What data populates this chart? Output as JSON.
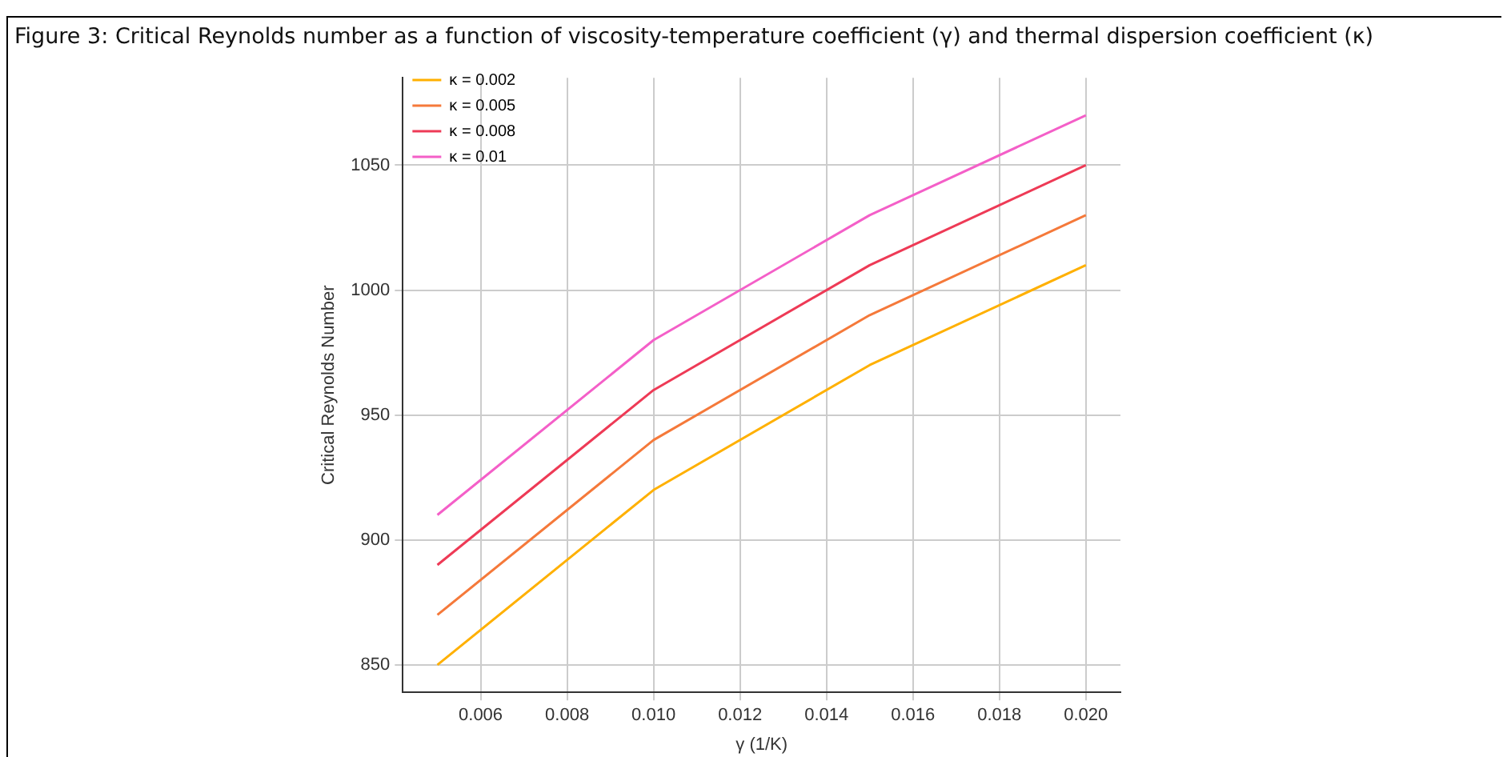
{
  "chart_data": {
    "type": "line",
    "title": "Figure 3: Critical Reynolds number as a function of viscosity-temperature coefficient (γ) and thermal dispersion coefficient (κ)",
    "xlabel": "γ (1/K)",
    "ylabel": "Critical Reynolds Number",
    "x": [
      0.005,
      0.01,
      0.015,
      0.02
    ],
    "series": [
      {
        "name": "κ = 0.002",
        "color": "#ffb000",
        "values": [
          850,
          920,
          970,
          1010
        ]
      },
      {
        "name": "κ = 0.005",
        "color": "#f5793a",
        "values": [
          870,
          940,
          990,
          1030
        ]
      },
      {
        "name": "κ = 0.008",
        "color": "#ee3a56",
        "values": [
          890,
          960,
          1010,
          1050
        ]
      },
      {
        "name": "κ = 0.01",
        "color": "#f45fc8",
        "values": [
          910,
          980,
          1030,
          1070
        ]
      }
    ],
    "xlim": [
      0.0042,
      0.0208
    ],
    "xticks": [
      {
        "value": 0.006,
        "label": "0.006"
      },
      {
        "value": 0.008,
        "label": "0.008"
      },
      {
        "value": 0.01,
        "label": "0.010"
      },
      {
        "value": 0.012,
        "label": "0.012"
      },
      {
        "value": 0.014,
        "label": "0.014"
      },
      {
        "value": 0.016,
        "label": "0.016"
      },
      {
        "value": 0.018,
        "label": "0.018"
      },
      {
        "value": 0.02,
        "label": "0.020"
      }
    ],
    "ylim": [
      839,
      1085
    ],
    "yticks": [
      850,
      900,
      950,
      1000,
      1050
    ],
    "grid": true,
    "legend": "top left",
    "marker": "none",
    "line_style": "solid"
  }
}
